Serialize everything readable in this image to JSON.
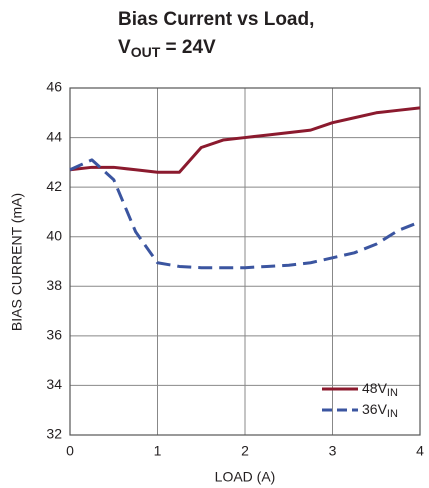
{
  "chart_data": {
    "type": "line",
    "title": {
      "line1": "Bias Current vs Load,",
      "line2": {
        "main": "V",
        "sub": "OUT",
        "rest": " = 24V"
      }
    },
    "xlabel": "LOAD (A)",
    "ylabel": "BIAS CURRENT (mA)",
    "x": [
      0,
      0.25,
      0.5,
      0.75,
      1,
      1.25,
      1.5,
      1.75,
      2,
      2.25,
      2.5,
      2.75,
      3,
      3.25,
      3.5,
      3.75,
      4
    ],
    "series": [
      {
        "name": "48V",
        "name_sub": "IN",
        "color": "#8b1a2e",
        "dash": false,
        "values": [
          42.7,
          42.8,
          42.8,
          42.7,
          42.6,
          42.6,
          43.6,
          43.9,
          44.0,
          44.1,
          44.2,
          44.3,
          44.6,
          44.8,
          45.0,
          45.1,
          45.2
        ]
      },
      {
        "name": "36V",
        "name_sub": "IN",
        "color": "#3b55a0",
        "dash": true,
        "values": [
          42.7,
          43.1,
          42.3,
          40.2,
          38.95,
          38.8,
          38.75,
          38.75,
          38.75,
          38.8,
          38.85,
          38.95,
          39.15,
          39.35,
          39.7,
          40.25,
          40.6
        ]
      }
    ],
    "xlim": [
      0,
      4
    ],
    "xticks": [
      0,
      1,
      2,
      3,
      4
    ],
    "ylim": [
      32,
      46
    ],
    "yticks": [
      32,
      34,
      36,
      38,
      40,
      42,
      44,
      46
    ],
    "grid": true,
    "legend": "lower right"
  }
}
